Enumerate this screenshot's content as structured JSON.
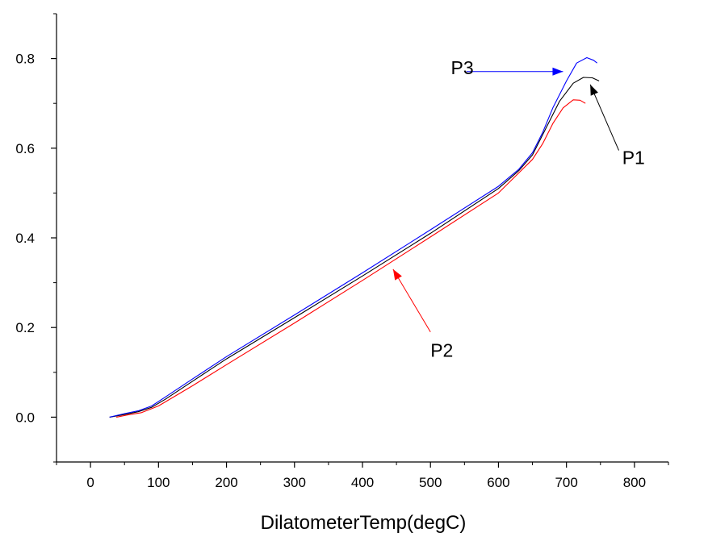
{
  "chart_data": {
    "type": "line",
    "title": "",
    "xlabel": "DilatometerTemp(degC)",
    "ylabel": "",
    "xlim": [
      -50,
      850
    ],
    "ylim": [
      -0.1,
      0.9
    ],
    "xticks": [
      0,
      100,
      200,
      300,
      400,
      500,
      600,
      700,
      800
    ],
    "yticks": [
      0.0,
      0.2,
      0.4,
      0.6,
      0.8
    ],
    "x_tick_labels": [
      "0",
      "100",
      "200",
      "300",
      "400",
      "500",
      "600",
      "700",
      "800"
    ],
    "y_tick_labels": [
      "0.0",
      "0.2",
      "0.4",
      "0.6",
      "0.8"
    ],
    "grid": false,
    "legend": "none",
    "series": [
      {
        "name": "P1",
        "color": "#000000",
        "points": [
          [
            28,
            0.0
          ],
          [
            50,
            0.006
          ],
          [
            70,
            0.012
          ],
          [
            90,
            0.022
          ],
          [
            110,
            0.04
          ],
          [
            150,
            0.08
          ],
          [
            200,
            0.13
          ],
          [
            300,
            0.222
          ],
          [
            400,
            0.315
          ],
          [
            500,
            0.41
          ],
          [
            600,
            0.51
          ],
          [
            630,
            0.55
          ],
          [
            650,
            0.585
          ],
          [
            670,
            0.645
          ],
          [
            690,
            0.705
          ],
          [
            710,
            0.745
          ],
          [
            725,
            0.758
          ],
          [
            738,
            0.757
          ],
          [
            748,
            0.75
          ]
        ]
      },
      {
        "name": "P2",
        "color": "#ff0000",
        "points": [
          [
            38,
            0.0
          ],
          [
            55,
            0.005
          ],
          [
            75,
            0.01
          ],
          [
            100,
            0.025
          ],
          [
            150,
            0.07
          ],
          [
            200,
            0.117
          ],
          [
            300,
            0.21
          ],
          [
            400,
            0.305
          ],
          [
            500,
            0.402
          ],
          [
            600,
            0.5
          ],
          [
            630,
            0.545
          ],
          [
            650,
            0.575
          ],
          [
            665,
            0.61
          ],
          [
            680,
            0.655
          ],
          [
            695,
            0.69
          ],
          [
            710,
            0.708
          ],
          [
            720,
            0.707
          ],
          [
            728,
            0.7
          ]
        ]
      },
      {
        "name": "P3",
        "color": "#0000ff",
        "points": [
          [
            28,
            0.0
          ],
          [
            50,
            0.008
          ],
          [
            70,
            0.014
          ],
          [
            90,
            0.025
          ],
          [
            110,
            0.045
          ],
          [
            150,
            0.085
          ],
          [
            200,
            0.135
          ],
          [
            300,
            0.228
          ],
          [
            400,
            0.322
          ],
          [
            500,
            0.418
          ],
          [
            600,
            0.515
          ],
          [
            630,
            0.553
          ],
          [
            650,
            0.59
          ],
          [
            665,
            0.635
          ],
          [
            680,
            0.69
          ],
          [
            700,
            0.75
          ],
          [
            715,
            0.79
          ],
          [
            730,
            0.802
          ],
          [
            740,
            0.796
          ],
          [
            745,
            0.79
          ]
        ]
      }
    ],
    "annotations": [
      {
        "label": "P1",
        "color": "#000000",
        "text_at": [
          782,
          0.565
        ],
        "arrow_from": [
          777,
          0.595
        ],
        "arrow_to": [
          735,
          0.742
        ]
      },
      {
        "label": "P2",
        "color": "#ff0000",
        "text_at": [
          500,
          0.135
        ],
        "arrow_from": [
          500,
          0.19
        ],
        "arrow_to": [
          445,
          0.33
        ]
      },
      {
        "label": "P3",
        "color": "#0000ff",
        "text_at": [
          530,
          0.765
        ],
        "arrow_from": [
          553,
          0.771
        ],
        "arrow_to": [
          695,
          0.771
        ]
      }
    ]
  }
}
